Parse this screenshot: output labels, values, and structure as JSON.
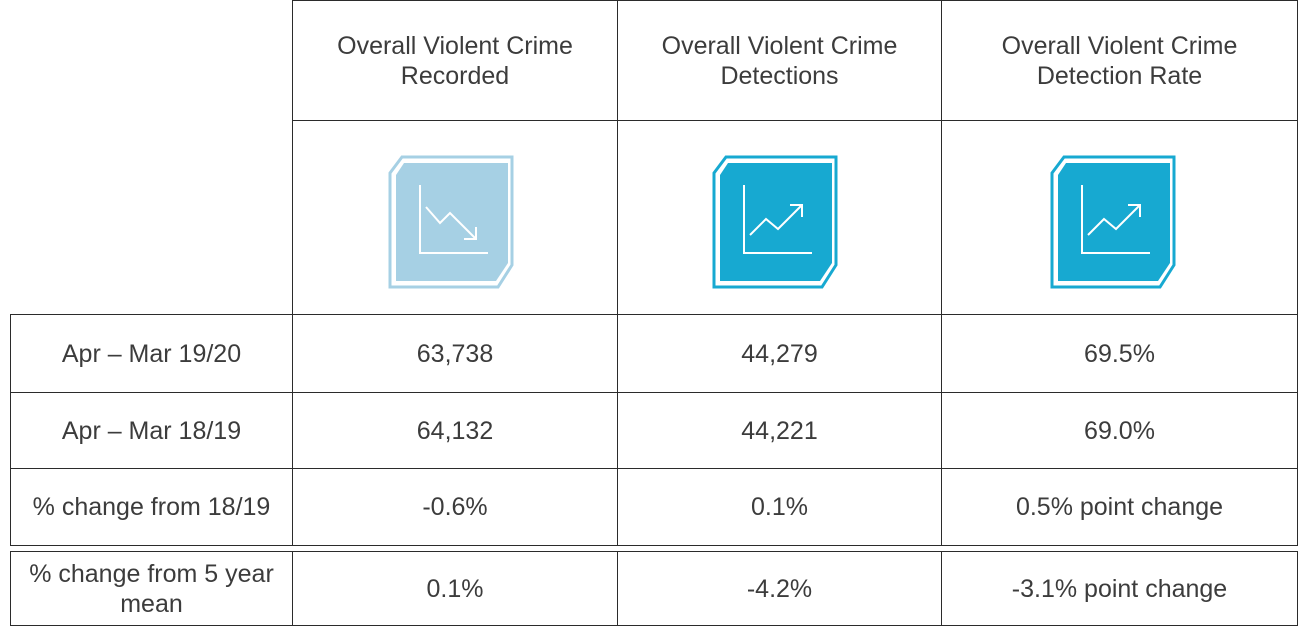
{
  "table": {
    "header": [
      "Overall Violent Crime Recorded",
      "Overall Violent Crime Detections",
      "Overall Violent Crime Detection Rate"
    ],
    "rows": [
      [
        "Apr – Mar 19/20",
        "63,738",
        "44,279",
        "69.5%"
      ],
      [
        "Apr – Mar 18/19",
        "64,132",
        "44,221",
        "69.0%"
      ],
      [
        "% change from 18/19",
        "-0.6%",
        "0.1%",
        "0.5% point change"
      ],
      [
        "% change from 5 year mean",
        "0.1%",
        "-4.2%",
        "-3.1% point change"
      ]
    ]
  }
}
